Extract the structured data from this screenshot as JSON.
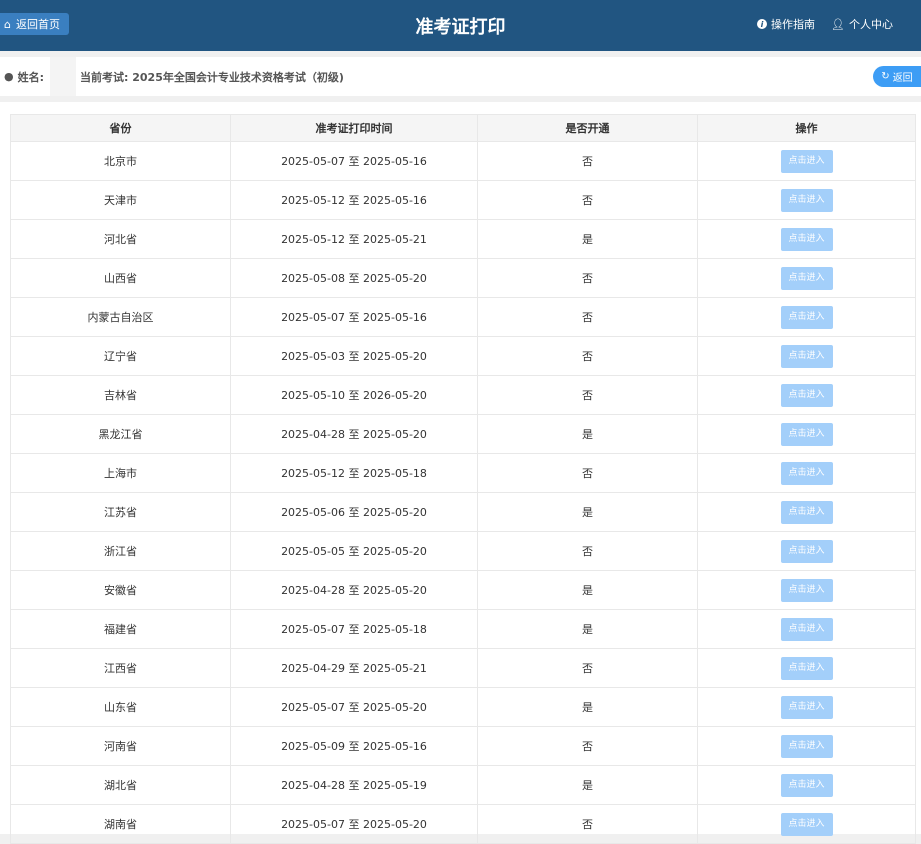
{
  "header": {
    "home_label": "返回首页",
    "title": "准考证打印",
    "guide_label": "操作指南",
    "profile_label": "个人中心"
  },
  "userbar": {
    "name_label": "姓名:",
    "exam_label": "当前考试: 2025年全国会计专业技术资格考试（初级)",
    "back_label": "返回"
  },
  "table": {
    "columns": [
      "省份",
      "准考证打印时间",
      "是否开通",
      "操作"
    ],
    "action_label": "点击进入",
    "rows": [
      [
        "北京市",
        "2025-05-07 至 2025-05-16",
        "否"
      ],
      [
        "天津市",
        "2025-05-12 至 2025-05-16",
        "否"
      ],
      [
        "河北省",
        "2025-05-12 至 2025-05-21",
        "是"
      ],
      [
        "山西省",
        "2025-05-08 至 2025-05-20",
        "否"
      ],
      [
        "内蒙古自治区",
        "2025-05-07 至 2025-05-16",
        "否"
      ],
      [
        "辽宁省",
        "2025-05-03 至 2025-05-20",
        "否"
      ],
      [
        "吉林省",
        "2025-05-10 至 2026-05-20",
        "否"
      ],
      [
        "黑龙江省",
        "2025-04-28 至 2025-05-20",
        "是"
      ],
      [
        "上海市",
        "2025-05-12 至 2025-05-18",
        "否"
      ],
      [
        "江苏省",
        "2025-05-06 至 2025-05-20",
        "是"
      ],
      [
        "浙江省",
        "2025-05-05 至 2025-05-20",
        "否"
      ],
      [
        "安徽省",
        "2025-04-28 至 2025-05-20",
        "是"
      ],
      [
        "福建省",
        "2025-05-07 至 2025-05-18",
        "是"
      ],
      [
        "江西省",
        "2025-04-29 至 2025-05-21",
        "否"
      ],
      [
        "山东省",
        "2025-05-07 至 2025-05-20",
        "是"
      ],
      [
        "河南省",
        "2025-05-09 至 2025-05-16",
        "否"
      ],
      [
        "湖北省",
        "2025-04-28 至 2025-05-19",
        "是"
      ],
      [
        "湖南省",
        "2025-05-07 至 2025-05-20",
        "否"
      ]
    ]
  },
  "colors": {
    "header_bg": "#215581",
    "button_disabled": "#a3cffa",
    "accent": "#3d9df5"
  }
}
